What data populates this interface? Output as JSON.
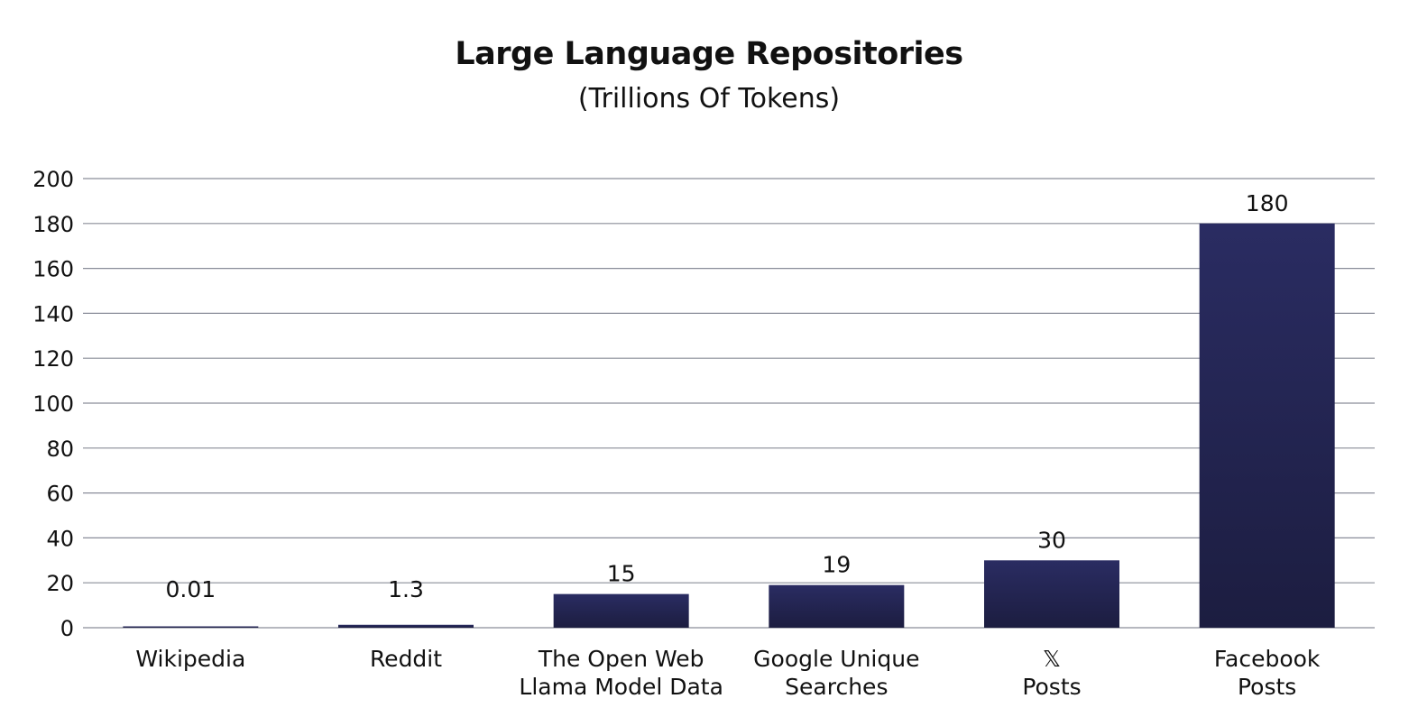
{
  "chart_data": {
    "type": "bar",
    "title": "Large Language Repositories",
    "subtitle": "(Trillions Of Tokens)",
    "categories": [
      [
        "Wikipedia"
      ],
      [
        "Reddit"
      ],
      [
        "The Open Web",
        "Llama Model Data"
      ],
      [
        "Google Unique",
        "Searches"
      ],
      [
        "𝕏",
        "Posts"
      ],
      [
        "Facebook",
        "Posts"
      ]
    ],
    "values": [
      0.01,
      1.3,
      15,
      19,
      30,
      180
    ],
    "data_labels": [
      "0.01",
      "1.3",
      "15",
      "19",
      "30",
      "180"
    ],
    "yticks": [
      "0",
      "20",
      "40",
      "60",
      "80",
      "100",
      "120",
      "140",
      "160",
      "180",
      "200"
    ],
    "ylim": [
      0,
      200
    ],
    "grid": true,
    "bar_color": "#232550"
  }
}
